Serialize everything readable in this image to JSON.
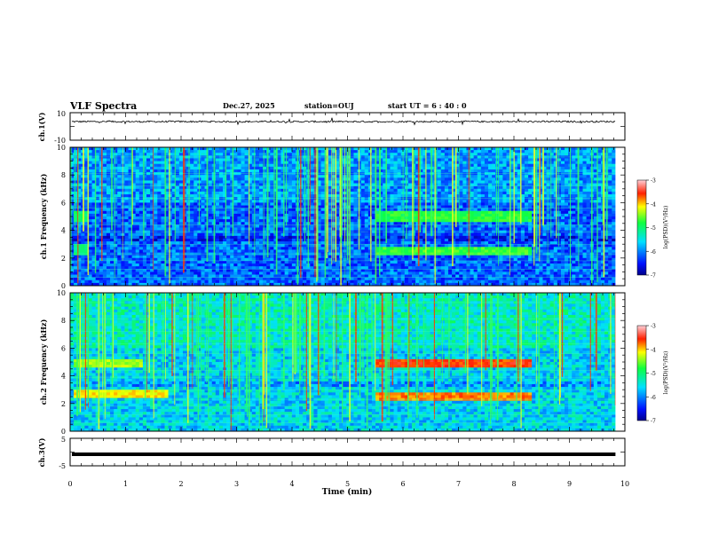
{
  "header": {
    "title": "VLF Spectra",
    "date": "Dec.27, 2025",
    "station": "station=OUJ",
    "start_ut": "start  UT =  6 : 40 : 0"
  },
  "chart_data": [
    {
      "type": "line",
      "panel": "ch1-waveform",
      "ylabel": "ch.1(V)",
      "ylim": [
        -10,
        10
      ],
      "ytick_labels": [
        "10",
        "-10"
      ],
      "baseline_value": 3.5,
      "noise_amplitude": 0.6,
      "grid": false
    },
    {
      "type": "heatmap",
      "panel": "ch1-spectrogram",
      "ylabel": "ch.1 Frequency (kHz)",
      "ylim": [
        0,
        10
      ],
      "ytick_labels": [
        "0",
        "2",
        "4",
        "6",
        "8",
        "10"
      ],
      "colorbar": {
        "label": "log(PSD)(V²/Hz)",
        "range": [
          -7,
          -3
        ],
        "tick_labels": [
          "-3",
          "-4",
          "-5",
          "-6",
          "-7"
        ]
      },
      "bands_khz": [
        {
          "start_min": 0.05,
          "end_min": 0.35,
          "center": 5.0,
          "level": -5.2
        },
        {
          "start_min": 0.05,
          "end_min": 0.35,
          "center": 2.6,
          "level": -5.3
        },
        {
          "start_min": 5.5,
          "end_min": 8.3,
          "center": 5.0,
          "level": -5.0
        },
        {
          "start_min": 5.5,
          "end_min": 8.3,
          "center": 2.5,
          "level": -4.9
        }
      ]
    },
    {
      "type": "heatmap",
      "panel": "ch2-spectrogram",
      "ylabel": "ch.2 Frequency (kHz)",
      "ylim": [
        0,
        10
      ],
      "ytick_labels": [
        "0",
        "2",
        "4",
        "6",
        "8",
        "10"
      ],
      "colorbar": {
        "label": "log(PSD)(V²/Hz)",
        "range": [
          -7,
          -3
        ],
        "tick_labels": [
          "-3",
          "-4",
          "-5",
          "-6",
          "-7"
        ]
      },
      "bands_khz": [
        {
          "start_min": 0.05,
          "end_min": 1.3,
          "center": 4.9,
          "level": -4.6
        },
        {
          "start_min": 0.05,
          "end_min": 1.8,
          "center": 2.7,
          "level": -4.3
        },
        {
          "start_min": 5.5,
          "end_min": 8.3,
          "center": 4.9,
          "level": -3.8
        },
        {
          "start_min": 5.5,
          "end_min": 8.3,
          "center": 2.5,
          "level": -4.0
        }
      ]
    },
    {
      "type": "line",
      "panel": "ch3-waveform",
      "ylabel": "ch.3(V)",
      "ylim": [
        -5,
        5
      ],
      "ytick_labels": [
        "5",
        "-5"
      ],
      "baseline_value": -0.8,
      "grid": false
    }
  ],
  "x_axis": {
    "label": "Time (min)",
    "range": [
      0,
      10
    ],
    "tick_labels": [
      "0",
      "1",
      "2",
      "3",
      "4",
      "5",
      "6",
      "7",
      "8",
      "9",
      "10"
    ],
    "data_end_min": 9.83
  },
  "colors": {
    "background": "#ffffff",
    "axis": "#000000",
    "trace": "#000000"
  }
}
